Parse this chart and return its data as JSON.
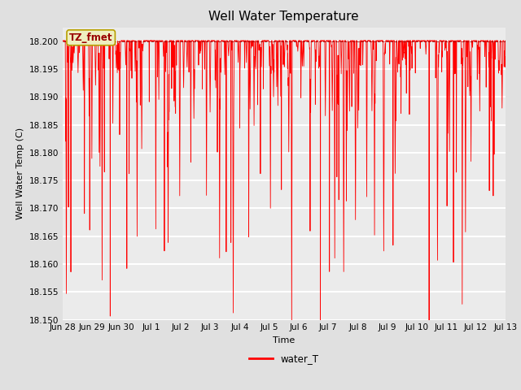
{
  "title": "Well Water Temperature",
  "xlabel": "Time",
  "ylabel": "Well Water Temp (C)",
  "ylim": [
    18.15,
    18.2025
  ],
  "yticks": [
    18.15,
    18.155,
    18.16,
    18.165,
    18.17,
    18.175,
    18.18,
    18.185,
    18.19,
    18.195,
    18.2
  ],
  "line_color": "red",
  "line_width": 0.6,
  "background_color": "#e0e0e0",
  "plot_bg_color": "#ebebeb",
  "legend_label": "water_T",
  "legend_line_color": "red",
  "annotation_text": "TZ_fmet",
  "annotation_bg": "#efefc0",
  "annotation_border": "#b8a000",
  "dashed_line_value": 18.2,
  "dashed_line_color": "#880000",
  "dashed_line_style": "--",
  "base_value": 18.2001,
  "x_start_days": 0,
  "x_end_days": 15.0,
  "xtick_positions": [
    0,
    1,
    2,
    3,
    4,
    5,
    6,
    7,
    8,
    9,
    10,
    11,
    12,
    13,
    14,
    15
  ],
  "xtick_labels": [
    "Jun 28",
    "Jun 29",
    "Jun 30",
    "Jul 1",
    "Jul 2",
    "Jul 3",
    "Jul 4",
    "Jul 5",
    "Jul 6",
    "Jul 7",
    "Jul 8",
    "Jul 9",
    "Jul 10",
    "Jul 11",
    "Jul 12",
    "Jul 13"
  ]
}
